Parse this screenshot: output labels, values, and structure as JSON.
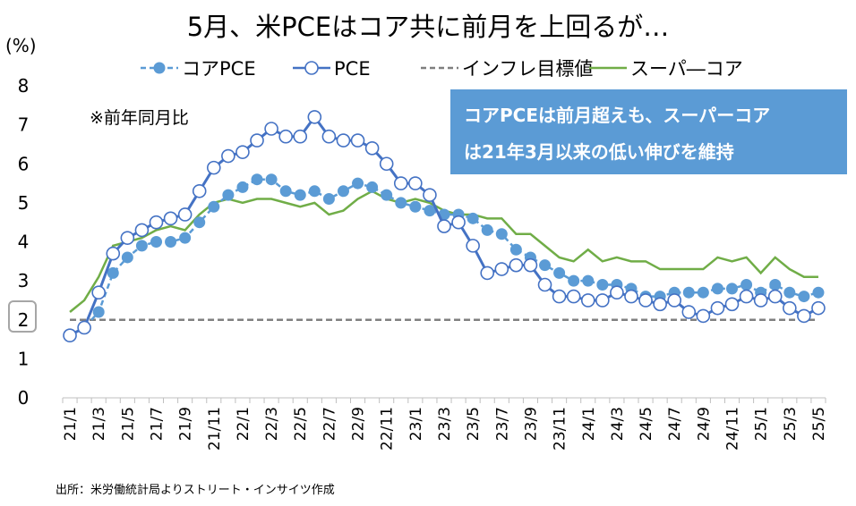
{
  "chart_data": {
    "type": "line",
    "title": "5月、米PCEはコア共に前月を上回るが…",
    "ylabel": "(%)",
    "ylim": [
      0,
      8
    ],
    "yticks": [
      "0",
      "1",
      "2",
      "3",
      "4",
      "5",
      "6",
      "7",
      "8"
    ],
    "highlighted_ytick": "2",
    "note": "※前年同月比",
    "callout": [
      "コアPCEは前月超えも、スーパーコア",
      "は21年3月以来の低い伸びを維持"
    ],
    "source": "出所：米労働統計局よりストリート・インサイツ作成",
    "legend_position": "top",
    "grid": false,
    "x": [
      "21/1",
      "21/2",
      "21/3",
      "21/4",
      "21/5",
      "21/6",
      "21/7",
      "21/8",
      "21/9",
      "21/10",
      "21/11",
      "21/12",
      "22/1",
      "22/2",
      "22/3",
      "22/4",
      "22/5",
      "22/6",
      "22/7",
      "22/8",
      "22/9",
      "22/10",
      "22/11",
      "22/12",
      "23/1",
      "23/2",
      "23/3",
      "23/4",
      "23/5",
      "23/6",
      "23/7",
      "23/8",
      "23/9",
      "23/10",
      "23/11",
      "23/12",
      "24/1",
      "24/2",
      "24/3",
      "24/4",
      "24/5",
      "24/6",
      "24/7",
      "24/8",
      "24/9",
      "24/10",
      "24/11",
      "24/12",
      "25/1",
      "25/2",
      "25/3",
      "25/4",
      "25/5"
    ],
    "xtick_labels": [
      "21/1",
      "21/3",
      "21/5",
      "21/7",
      "21/9",
      "21/11",
      "22/1",
      "22/3",
      "22/5",
      "22/7",
      "22/9",
      "22/11",
      "23/1",
      "23/3",
      "23/5",
      "23/7",
      "23/9",
      "23/11",
      "24/1",
      "24/3",
      "24/5",
      "24/7",
      "24/9",
      "24/11",
      "25/1",
      "25/3",
      "25/5"
    ],
    "series": [
      {
        "name": "コアPCE",
        "color": "#5b9bd5",
        "style": "dashed-dots",
        "values": [
          1.6,
          1.8,
          2.2,
          3.2,
          3.6,
          3.9,
          4.0,
          4.0,
          4.1,
          4.5,
          4.9,
          5.2,
          5.4,
          5.6,
          5.6,
          5.3,
          5.2,
          5.3,
          5.1,
          5.3,
          5.5,
          5.4,
          5.2,
          5.0,
          4.9,
          4.8,
          4.7,
          4.7,
          4.6,
          4.3,
          4.2,
          3.8,
          3.6,
          3.4,
          3.2,
          3.0,
          3.0,
          2.9,
          2.9,
          2.8,
          2.6,
          2.6,
          2.7,
          2.7,
          2.7,
          2.8,
          2.8,
          2.9,
          2.7,
          2.9,
          2.7,
          2.6,
          2.7
        ]
      },
      {
        "name": "PCE",
        "color": "#4472c4",
        "style": "solid-hollow-circles",
        "values": [
          1.6,
          1.8,
          2.7,
          3.7,
          4.1,
          4.3,
          4.5,
          4.6,
          4.7,
          5.3,
          5.9,
          6.2,
          6.3,
          6.6,
          6.9,
          6.7,
          6.7,
          7.2,
          6.7,
          6.6,
          6.6,
          6.4,
          6.0,
          5.5,
          5.5,
          5.2,
          4.4,
          4.5,
          3.9,
          3.2,
          3.3,
          3.4,
          3.4,
          2.9,
          2.6,
          2.6,
          2.5,
          2.5,
          2.7,
          2.6,
          2.5,
          2.4,
          2.5,
          2.2,
          2.1,
          2.3,
          2.4,
          2.6,
          2.5,
          2.6,
          2.3,
          2.1,
          2.3
        ]
      },
      {
        "name": "インフレ目標値",
        "color": "#7f7f7f",
        "style": "dashed",
        "values": [
          2,
          2,
          2,
          2,
          2,
          2,
          2,
          2,
          2,
          2,
          2,
          2,
          2,
          2,
          2,
          2,
          2,
          2,
          2,
          2,
          2,
          2,
          2,
          2,
          2,
          2,
          2,
          2,
          2,
          2,
          2,
          2,
          2,
          2,
          2,
          2,
          2,
          2,
          2,
          2,
          2,
          2,
          2,
          2,
          2,
          2,
          2,
          2,
          2,
          2,
          2,
          2,
          2
        ]
      },
      {
        "name": "スーパ―コア",
        "color": "#70ad47",
        "style": "solid",
        "values": [
          2.2,
          2.5,
          3.1,
          3.9,
          4.0,
          4.1,
          4.3,
          4.4,
          4.3,
          4.7,
          5.0,
          5.1,
          5.0,
          5.1,
          5.1,
          5.0,
          4.9,
          5.0,
          4.7,
          4.8,
          5.1,
          5.3,
          5.1,
          5.0,
          5.1,
          5.0,
          4.8,
          4.7,
          4.7,
          4.6,
          4.6,
          4.2,
          4.2,
          3.9,
          3.6,
          3.5,
          3.8,
          3.5,
          3.6,
          3.5,
          3.5,
          3.3,
          3.3,
          3.3,
          3.3,
          3.6,
          3.5,
          3.6,
          3.2,
          3.6,
          3.3,
          3.1,
          3.1
        ]
      }
    ]
  }
}
